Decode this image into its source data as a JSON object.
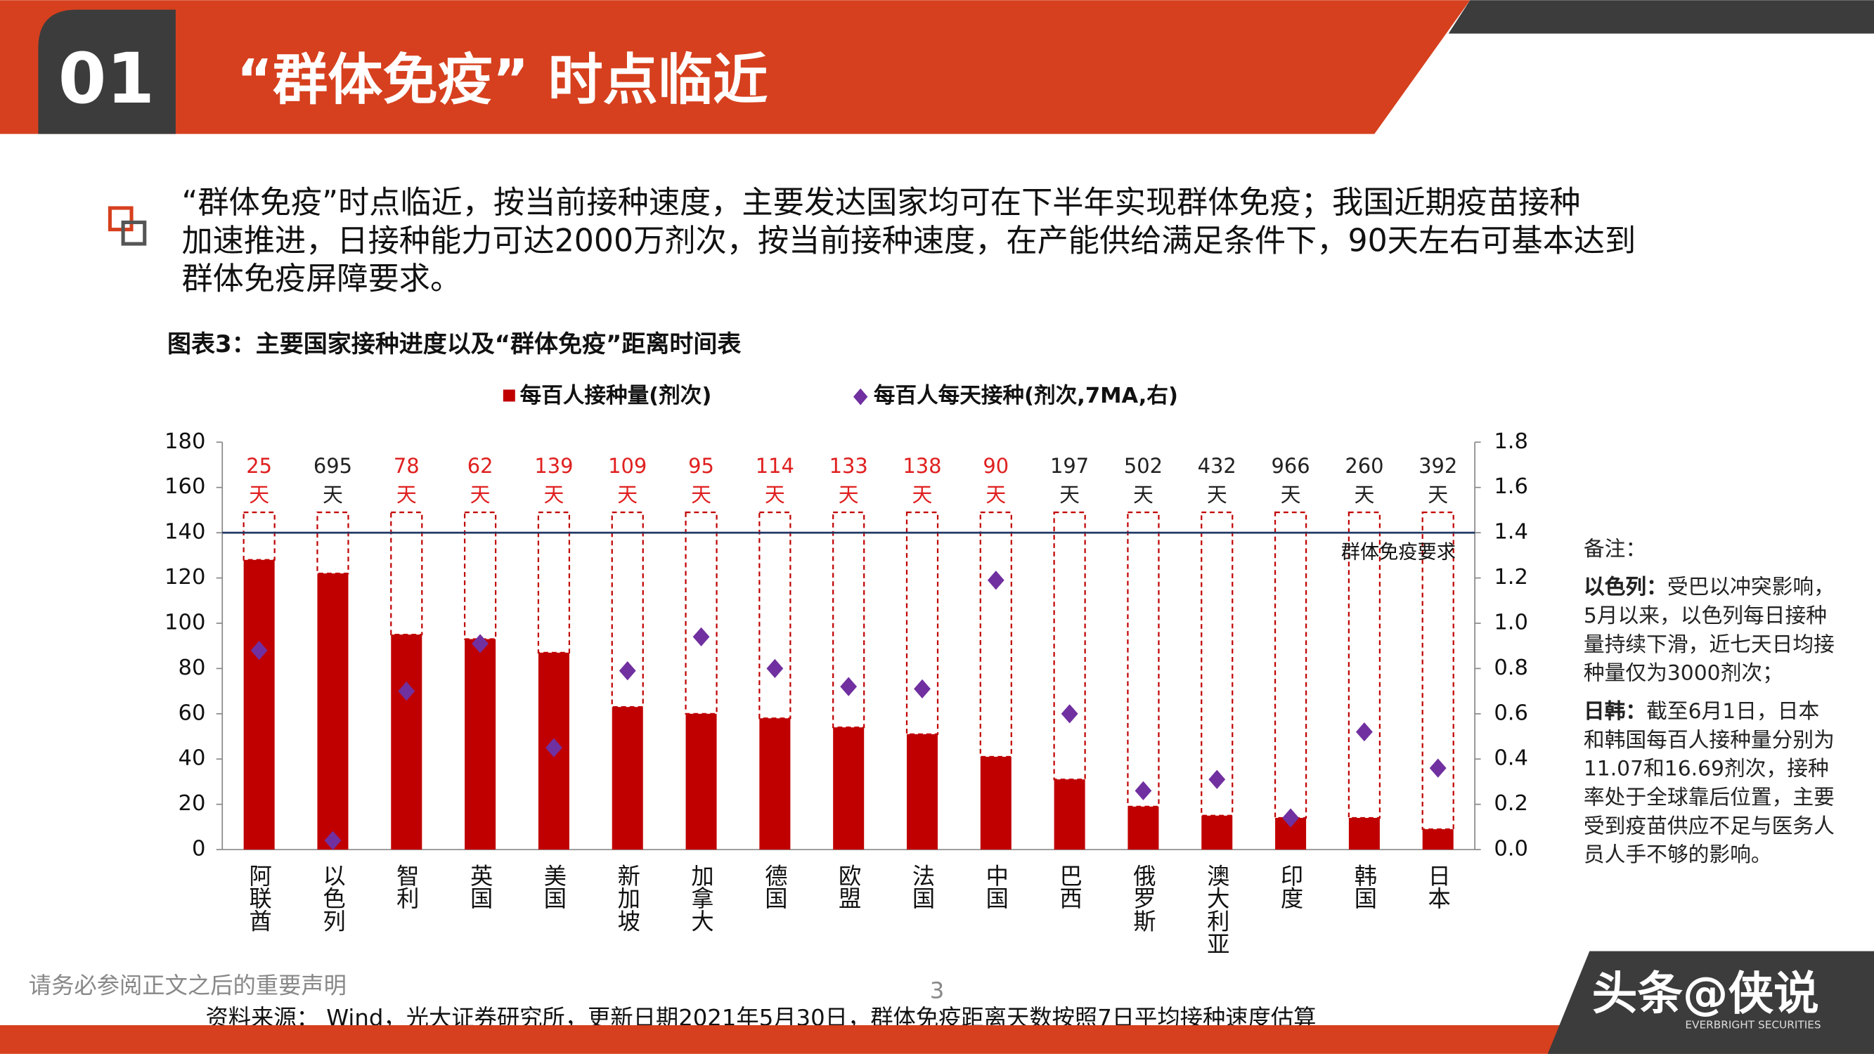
{
  "header": {
    "number": "01",
    "title": "“群体免疫”  时点临近"
  },
  "bullet_lines": [
    "“群体免疫”时点临近，按当前接种速度，主要发达国家均可在下半年实现群体免疫；我国近期疫苗接种",
    "加速推进，日接种能力可达2000万剂次，按当前接种速度，在产能供给满足条件下，90天左右可基本达到",
    "群体免疫屏障要求。"
  ],
  "chart_data": {
    "type": "bar",
    "title": "图表3：主要国家接种进度以及“群体免疫”距离时间表",
    "categories": [
      "阿联酋",
      "以色列",
      "智利",
      "英国",
      "美国",
      "新加坡",
      "加拿大",
      "德国",
      "欧盟",
      "法国",
      "中国",
      "巴西",
      "俄罗斯",
      "澳大利亚",
      "印度",
      "韩国",
      "日本"
    ],
    "series": [
      {
        "name": "每百人接种量(剂次)",
        "color": "#c00000",
        "values": [
          128,
          122,
          95,
          93,
          87,
          63,
          60,
          58,
          54,
          51,
          41,
          31,
          19,
          15,
          14,
          14,
          9
        ]
      },
      {
        "name": "每百人每天接种(剂次,7MA,右)",
        "color": "#7030a0",
        "axis": "y2",
        "values": [
          0.88,
          0.04,
          0.7,
          0.91,
          0.45,
          0.79,
          0.94,
          0.8,
          0.72,
          0.71,
          1.19,
          0.6,
          0.26,
          0.31,
          0.14,
          0.52,
          0.36
        ]
      }
    ],
    "days": {
      "values": [
        25,
        695,
        78,
        62,
        139,
        109,
        95,
        114,
        133,
        138,
        90,
        197,
        502,
        432,
        966,
        260,
        392
      ],
      "unit": "天",
      "colors": [
        "#e02020",
        "#222222",
        "#e02020",
        "#e02020",
        "#e02020",
        "#e02020",
        "#e02020",
        "#e02020",
        "#e02020",
        "#e02020",
        "#e02020",
        "#222222",
        "#222222",
        "#222222",
        "#222222",
        "#222222",
        "#222222"
      ]
    },
    "threshold": {
      "value": 140,
      "label": "群体免疫要求"
    },
    "ylim": [
      0,
      180
    ],
    "yticks": [
      0,
      20,
      40,
      60,
      80,
      100,
      120,
      140,
      160,
      180
    ],
    "y2lim": [
      0,
      1.8
    ],
    "y2ticks": [
      {
        "value": 0,
        "label": "0.0"
      },
      0.2,
      0.4,
      0.6,
      0.8,
      {
        "value": 1,
        "label": "1.0"
      },
      1.2,
      1.4,
      1.6,
      1.8
    ]
  },
  "notes": {
    "heading": "备注：",
    "items": [
      {
        "label": "以色列：",
        "text": "受巴以冲突影响，5月以来，以色列每日接种量持续下滑，近七天日均接种量仅为3000剂次；"
      },
      {
        "label": "日韩：",
        "text": "截至6月1日，日本和韩国每百人接种量分别为11.07和16.69剂次，接种率处于全球靠后位置，主要受到疫苗供应不足与医务人员人手不够的影响。"
      }
    ]
  },
  "footer": {
    "disclaimer": "请务必参阅正文之后的重要声明",
    "page": "3",
    "source": "资料来源： Wind，光大证券研究所，更新日期2021年5月30日，群体免疫距离天数按照7日平均接种速度估算",
    "watermark": "头条@侠说",
    "logo_sub": "EVERBRIGHT SECURITIES"
  }
}
